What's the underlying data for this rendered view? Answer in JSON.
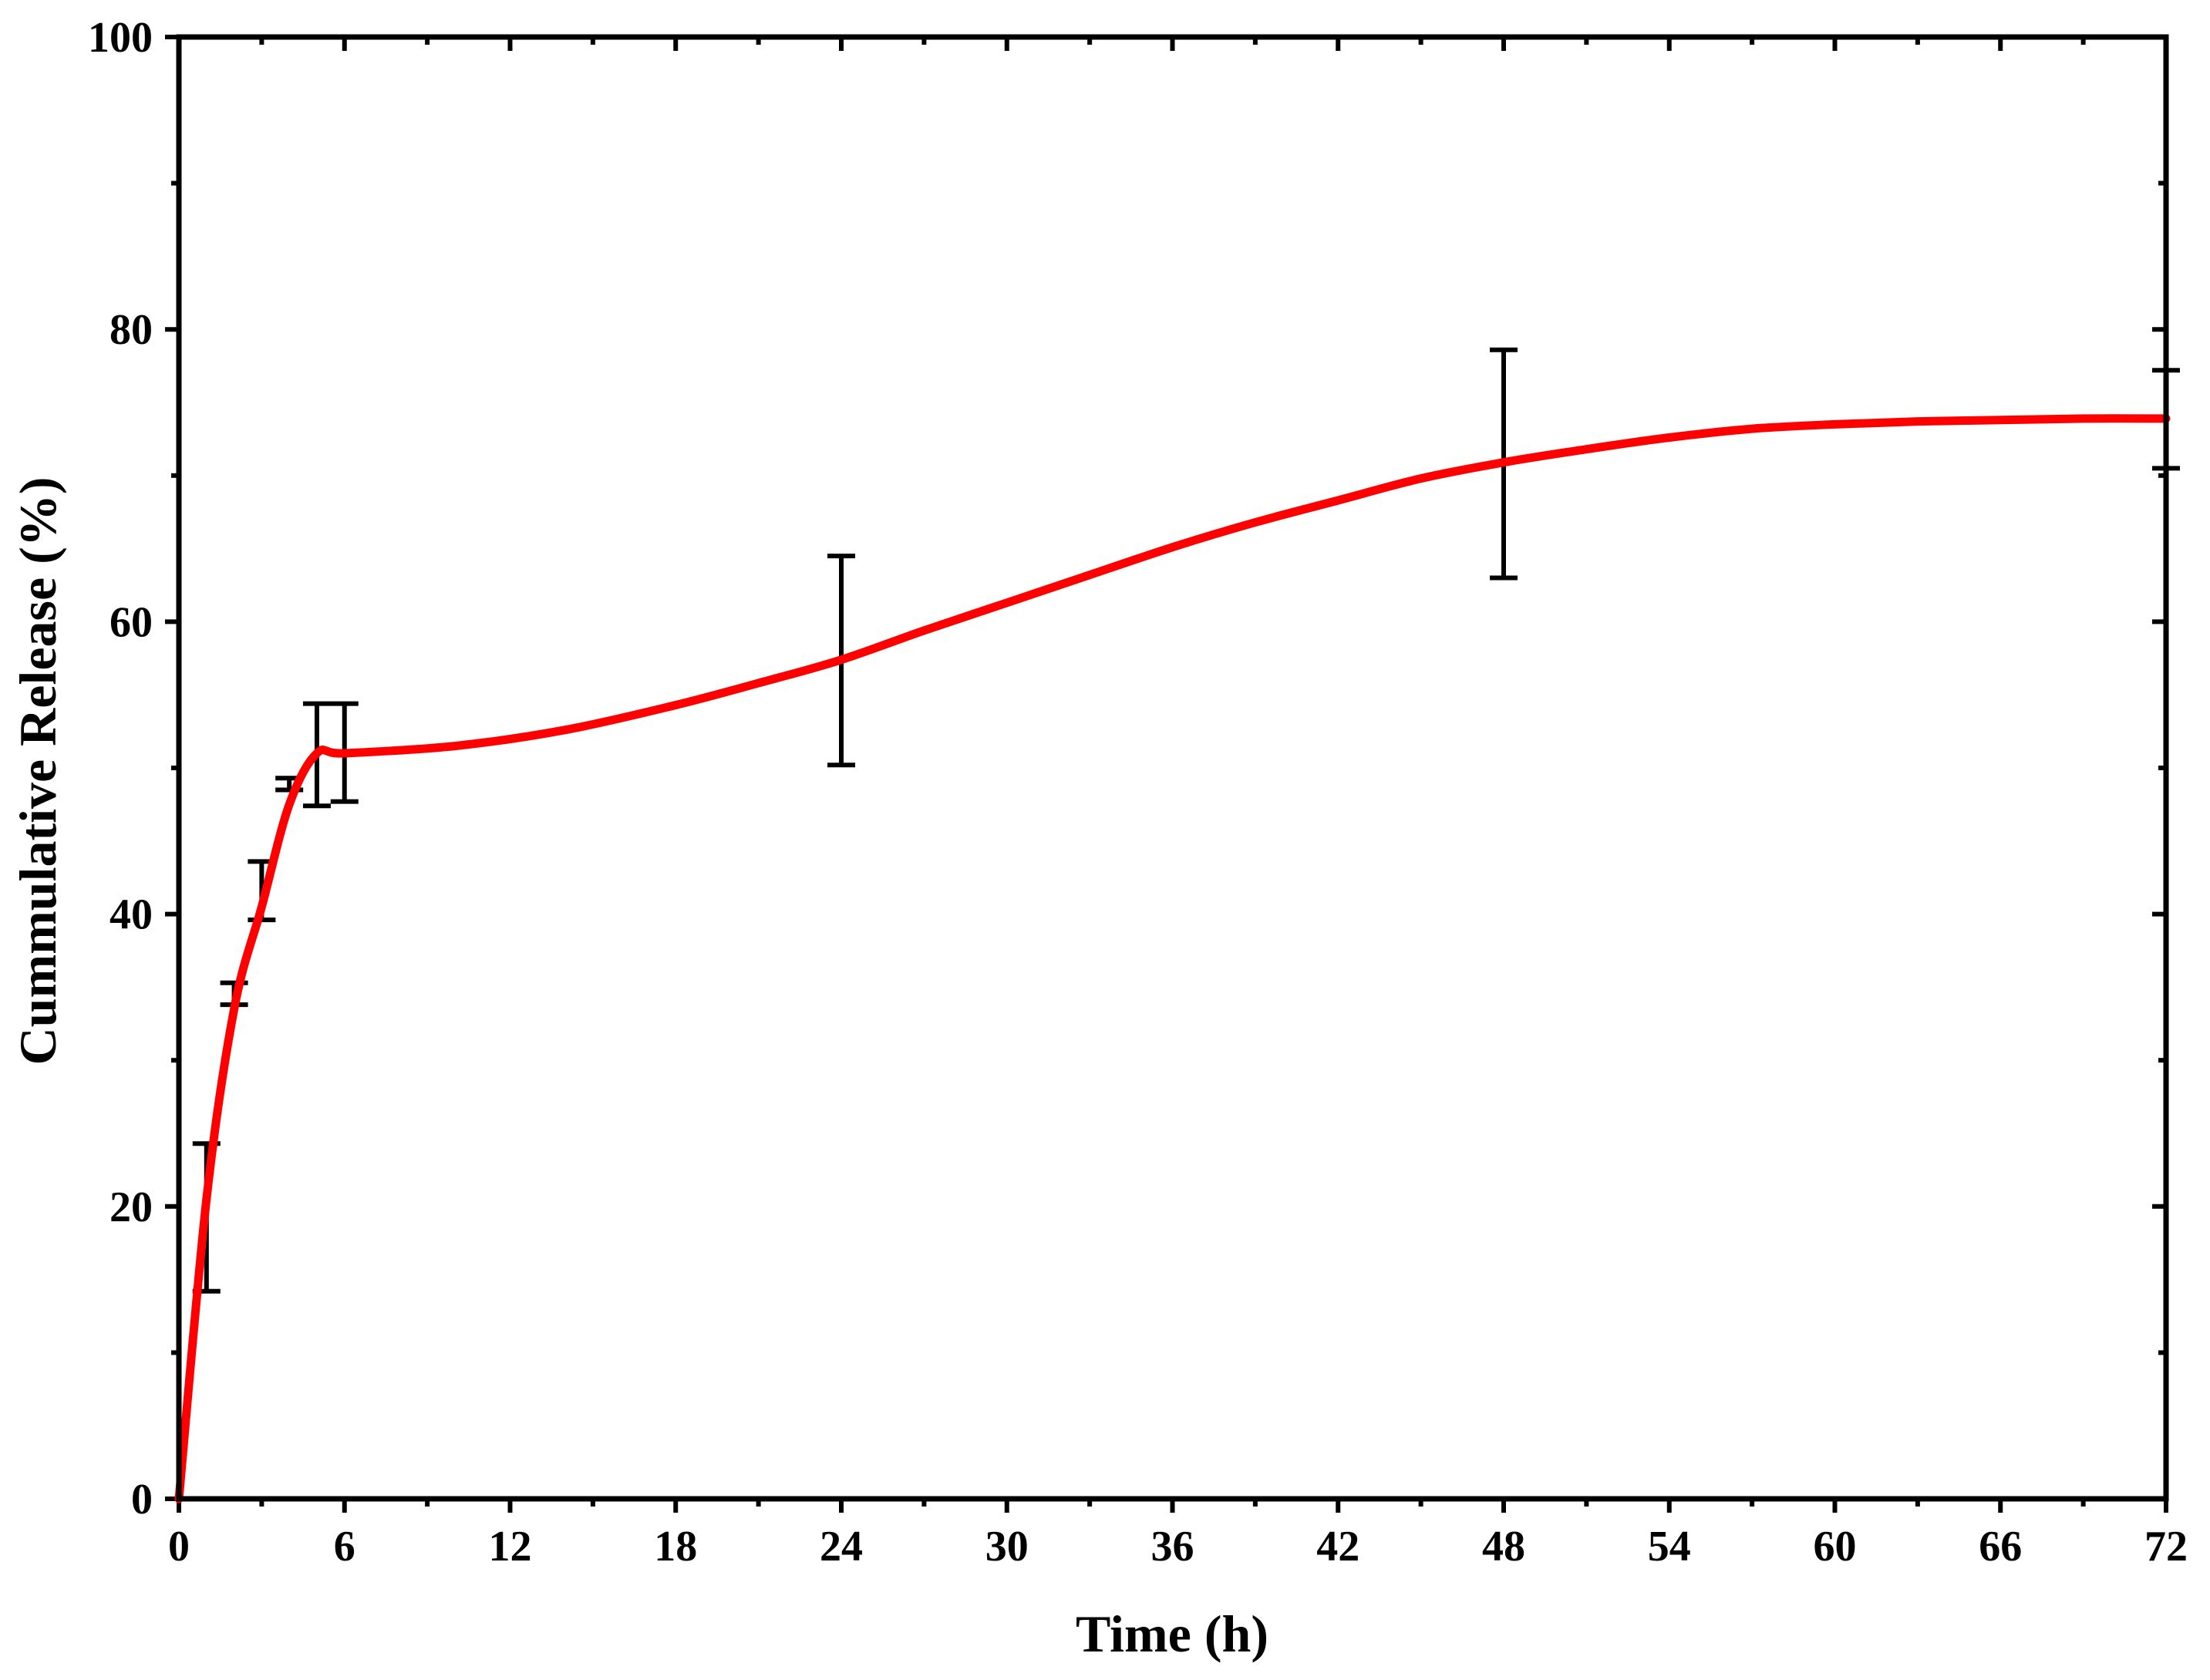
{
  "chart_data": {
    "type": "line",
    "title": "",
    "xlabel": "Time (h)",
    "ylabel": "Cummulative Release (%)",
    "xlim": [
      0,
      72
    ],
    "ylim": [
      0,
      100
    ],
    "x_ticks": [
      0,
      6,
      12,
      18,
      24,
      30,
      36,
      42,
      48,
      54,
      60,
      66,
      72
    ],
    "x_minor_ticks": [
      3,
      9,
      15,
      21,
      27,
      33,
      39,
      45,
      51,
      57,
      63,
      69
    ],
    "y_ticks": [
      0,
      20,
      40,
      60,
      80,
      100
    ],
    "y_minor_ticks": [
      10,
      30,
      50,
      70,
      90
    ],
    "grid": false,
    "legend": "none",
    "line_color": "#ff0000",
    "error_color": "#000000",
    "series": [
      {
        "name": "Cummulative Release",
        "x": [
          0,
          1,
          2,
          3,
          4,
          5,
          6,
          10,
          14,
          18,
          21,
          24,
          27,
          30,
          33,
          36,
          39,
          42,
          45,
          48,
          51,
          54,
          57,
          60,
          63,
          66,
          69,
          72
        ],
        "y": [
          0,
          20.5,
          33.5,
          40.5,
          47.5,
          51,
          51,
          51.5,
          52.6,
          54.3,
          55.8,
          57.4,
          59.4,
          61.3,
          63.2,
          65.1,
          66.8,
          68.3,
          69.8,
          70.9,
          71.8,
          72.6,
          73.2,
          73.5,
          73.7,
          73.8,
          73.9,
          73.9
        ]
      }
    ],
    "error_bars": [
      {
        "x": 1,
        "low": 14.2,
        "high": 24.3
      },
      {
        "x": 2,
        "low": 33.8,
        "high": 35.3
      },
      {
        "x": 3,
        "low": 39.6,
        "high": 43.6
      },
      {
        "x": 4,
        "low": 48.5,
        "high": 49.3
      },
      {
        "x": 5,
        "low": 47.4,
        "high": 54.4
      },
      {
        "x": 6,
        "low": 47.7,
        "high": 54.4
      },
      {
        "x": 24,
        "low": 50.2,
        "high": 64.5
      },
      {
        "x": 48,
        "low": 63,
        "high": 78.6
      },
      {
        "x": 72,
        "low": 70.5,
        "high": 77.2
      }
    ]
  }
}
